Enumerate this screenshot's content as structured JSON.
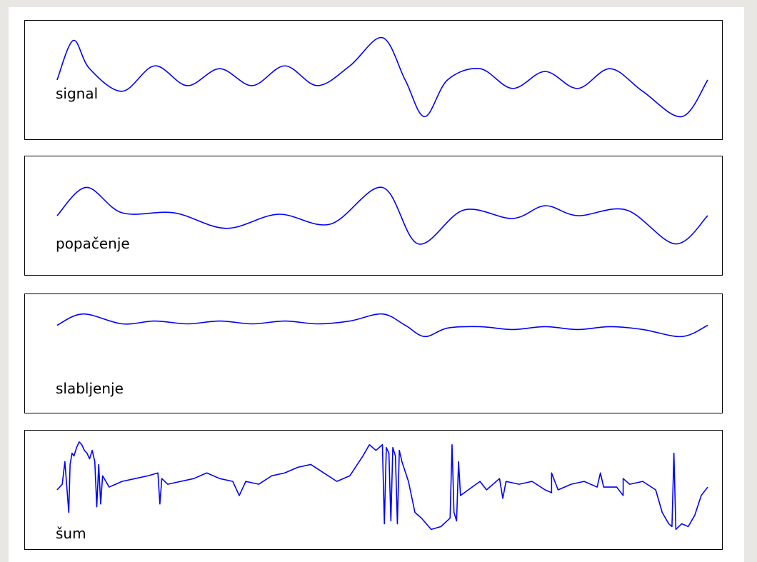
{
  "chart_data": {
    "type": "line",
    "line_color": "#0000ff",
    "grid": false,
    "panels": [
      {
        "label": "signal",
        "ylim": [
          -1.8,
          1.8
        ],
        "series": [
          {
            "x": [
              0,
              0.025,
              0.05,
              0.1,
              0.15,
              0.2,
              0.25,
              0.3,
              0.35,
              0.4,
              0.45,
              0.5,
              0.535,
              0.565,
              0.6,
              0.65,
              0.7,
              0.75,
              0.8,
              0.85,
              0.9,
              0.96,
              1.0
            ],
            "y": [
              0,
              1.4,
              0.4,
              -0.4,
              0.5,
              -0.2,
              0.4,
              -0.2,
              0.5,
              -0.2,
              0.5,
              1.5,
              0,
              -1.3,
              0,
              0.4,
              -0.3,
              0.3,
              -0.3,
              0.4,
              -0.4,
              -1.3,
              0
            ]
          }
        ]
      },
      {
        "label": "popačenje",
        "ylim": [
          -1.8,
          1.8
        ],
        "series": [
          {
            "x": [
              0,
              0.045,
              0.1,
              0.18,
              0.26,
              0.34,
              0.42,
              0.5,
              0.555,
              0.625,
              0.7,
              0.75,
              0.8,
              0.875,
              0.95,
              1.0
            ],
            "y": [
              0,
              1.0,
              0.1,
              0.1,
              -0.45,
              0.05,
              -0.3,
              1.0,
              -1.0,
              0.2,
              -0.1,
              0.35,
              0.0,
              0.2,
              -1.0,
              0
            ]
          }
        ]
      },
      {
        "label": "slabljenje",
        "ylim": [
          -1.8,
          1.8
        ],
        "series": [
          {
            "x": [
              0,
              0.04,
              0.1,
              0.15,
              0.2,
              0.25,
              0.3,
              0.35,
              0.4,
              0.45,
              0.5,
              0.535,
              0.565,
              0.6,
              0.65,
              0.7,
              0.75,
              0.8,
              0.85,
              0.9,
              0.96,
              1.0
            ],
            "y": [
              1.0,
              1.4,
              1.05,
              1.15,
              1.05,
              1.15,
              1.05,
              1.15,
              1.05,
              1.15,
              1.4,
              1.0,
              0.6,
              0.9,
              0.95,
              0.85,
              0.95,
              0.85,
              0.95,
              0.85,
              0.6,
              1.0
            ]
          }
        ]
      },
      {
        "label": "šum",
        "ylim": [
          -1.8,
          1.8
        ],
        "series": [
          {
            "x": [
              0,
              0.008,
              0.012,
              0.018,
              0.02,
              0.023,
              0.026,
              0.03,
              0.034,
              0.038,
              0.042,
              0.046,
              0.05,
              0.054,
              0.058,
              0.061,
              0.064,
              0.067,
              0.07,
              0.075,
              0.08,
              0.09,
              0.1,
              0.12,
              0.14,
              0.155,
              0.158,
              0.161,
              0.17,
              0.19,
              0.21,
              0.23,
              0.25,
              0.27,
              0.28,
              0.29,
              0.31,
              0.33,
              0.35,
              0.37,
              0.39,
              0.41,
              0.43,
              0.45,
              0.47,
              0.48,
              0.49,
              0.5,
              0.503,
              0.506,
              0.51,
              0.513,
              0.516,
              0.52,
              0.523,
              0.526,
              0.53,
              0.54,
              0.55,
              0.56,
              0.575,
              0.59,
              0.604,
              0.607,
              0.61,
              0.614,
              0.617,
              0.62,
              0.65,
              0.66,
              0.67,
              0.68,
              0.685,
              0.69,
              0.71,
              0.73,
              0.75,
              0.76,
              0.76,
              0.77,
              0.79,
              0.81,
              0.83,
              0.835,
              0.84,
              0.86,
              0.87,
              0.87,
              0.88,
              0.9,
              0.92,
              0.93,
              0.94,
              0.945,
              0.948,
              0.951,
              0.96,
              0.97,
              0.98,
              0.99,
              1.0
            ],
            "y": [
              0,
              0.2,
              1.0,
              -0.8,
              0.9,
              1.3,
              1.2,
              1.5,
              1.7,
              1.6,
              1.4,
              1.3,
              1.1,
              1.4,
              1.0,
              -0.6,
              0.9,
              -0.5,
              0.5,
              0.3,
              0.1,
              0.2,
              0.3,
              0.4,
              0.5,
              0.6,
              -0.5,
              0.4,
              0.2,
              0.3,
              0.4,
              0.6,
              0.4,
              0.3,
              -0.2,
              0.3,
              0.2,
              0.5,
              0.6,
              0.8,
              0.9,
              0.6,
              0.3,
              0.5,
              1.2,
              1.6,
              1.4,
              1.6,
              -1.2,
              1.5,
              1.3,
              -1.1,
              1.5,
              1.2,
              -1.2,
              1.4,
              1.0,
              0.3,
              -0.8,
              -1.0,
              -1.4,
              -1.3,
              -1.0,
              1.6,
              -0.8,
              -1.1,
              1.0,
              -0.2,
              0.3,
              0.0,
              0.2,
              0.4,
              -0.3,
              0.3,
              0.2,
              0.3,
              0.0,
              -0.1,
              0.6,
              0.0,
              0.2,
              0.3,
              0.1,
              0.6,
              0.1,
              0.1,
              -0.2,
              0.4,
              0.2,
              0.3,
              0.0,
              -0.8,
              -1.2,
              -1.3,
              1.3,
              -1.4,
              -1.2,
              -1.3,
              -0.9,
              -0.2,
              0.1
            ]
          }
        ]
      }
    ]
  }
}
